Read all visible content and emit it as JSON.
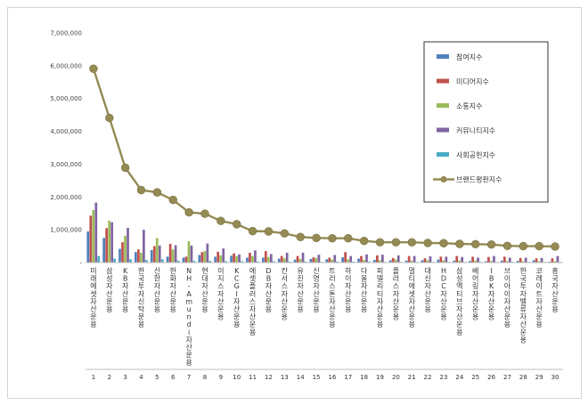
{
  "chart_data": {
    "type": "bar",
    "title": "",
    "xlabel": "",
    "ylabel": "",
    "ylim": [
      0,
      7000000
    ],
    "y_ticks": [
      "-",
      "1,000,000",
      "2,000,000",
      "3,000,000",
      "4,000,000",
      "5,000,000",
      "6,000,000",
      "7,000,000"
    ],
    "grid": false,
    "legend_position": "top-right",
    "categories": [
      "미래에셋자산운용",
      "삼성자산운용",
      "KB자산운용",
      "한국투자신탁운용",
      "신한자산운용",
      "한화자산운용",
      "NH-Amundi자산운용",
      "현대자산운용",
      "이지스자산운용",
      "KCGI자산운용",
      "에셋플러스자산운용",
      "DB자산운용",
      "칸서스자산운용",
      "유진자산운용",
      "신영자산운용",
      "트러스톤자산운용",
      "하이자산운용",
      "다올자산운용",
      "피델리티자산운용",
      "플러스자산운용",
      "멀티에셋자산운용",
      "대신자산운용",
      "HDC자산운용",
      "삼성액티브자산운용",
      "베어링자산운용",
      "IBK자산운용",
      "브이아이자산운용",
      "한국투자밸류자산운용",
      "코레이트자산운용",
      "흥국자산운용"
    ],
    "ranks": [
      "1",
      "2",
      "3",
      "4",
      "5",
      "6",
      "7",
      "8",
      "9",
      "10",
      "11",
      "12",
      "13",
      "14",
      "15",
      "16",
      "17",
      "18",
      "19",
      "20",
      "21",
      "22",
      "23",
      "24",
      "25",
      "26",
      "27",
      "28",
      "29",
      "30"
    ],
    "series": [
      {
        "name": "참여지수",
        "kind": "bar",
        "color": "#4f81bd",
        "values": [
          950000,
          750000,
          420000,
          320000,
          380000,
          180000,
          150000,
          230000,
          180000,
          210000,
          150000,
          150000,
          120000,
          90000,
          110000,
          100000,
          160000,
          120000,
          80000,
          70000,
          60000,
          70000,
          90000,
          60000,
          50000,
          40000,
          60000,
          50000,
          70000,
          30000
        ]
      },
      {
        "name": "미디어지수",
        "kind": "bar",
        "color": "#c0504d",
        "values": [
          1430000,
          1050000,
          620000,
          400000,
          500000,
          570000,
          180000,
          320000,
          330000,
          280000,
          300000,
          350000,
          200000,
          200000,
          160000,
          150000,
          320000,
          200000,
          220000,
          140000,
          200000,
          130000,
          180000,
          200000,
          180000,
          170000,
          180000,
          140000,
          130000,
          130000
        ]
      },
      {
        "name": "소통지수",
        "kind": "bar",
        "color": "#9bbb59",
        "values": [
          1600000,
          1280000,
          820000,
          300000,
          750000,
          400000,
          650000,
          350000,
          220000,
          200000,
          200000,
          170000,
          130000,
          110000,
          140000,
          90000,
          100000,
          80000,
          70000,
          90000,
          60000,
          70000,
          70000,
          60000,
          60000,
          50000,
          50000,
          40000,
          40000,
          40000
        ]
      },
      {
        "name": "커뮤니티지수",
        "kind": "bar",
        "color": "#8064a2",
        "values": [
          1830000,
          1230000,
          1060000,
          1000000,
          520000,
          530000,
          520000,
          580000,
          430000,
          250000,
          370000,
          260000,
          300000,
          300000,
          240000,
          230000,
          200000,
          250000,
          240000,
          220000,
          200000,
          190000,
          180000,
          170000,
          150000,
          200000,
          150000,
          150000,
          140000,
          200000
        ]
      },
      {
        "name": "사회공헌지수",
        "kind": "bar",
        "color": "#4bacc6",
        "values": [
          200000,
          120000,
          100000,
          80000,
          100000,
          60000,
          50000,
          50000,
          40000,
          40000,
          30000,
          40000,
          30000,
          30000,
          20000,
          30000,
          30000,
          30000,
          20000,
          20000,
          20000,
          20000,
          20000,
          20000,
          20000,
          20000,
          20000,
          20000,
          20000,
          20000
        ]
      },
      {
        "name": "브랜드평판지수",
        "kind": "line",
        "color": "#948a54",
        "values": [
          5910000,
          4410000,
          2890000,
          2210000,
          2140000,
          1910000,
          1530000,
          1490000,
          1270000,
          1170000,
          960000,
          950000,
          890000,
          780000,
          750000,
          740000,
          740000,
          660000,
          620000,
          620000,
          620000,
          600000,
          590000,
          570000,
          560000,
          550000,
          510000,
          500000,
          500000,
          490000
        ]
      }
    ]
  }
}
